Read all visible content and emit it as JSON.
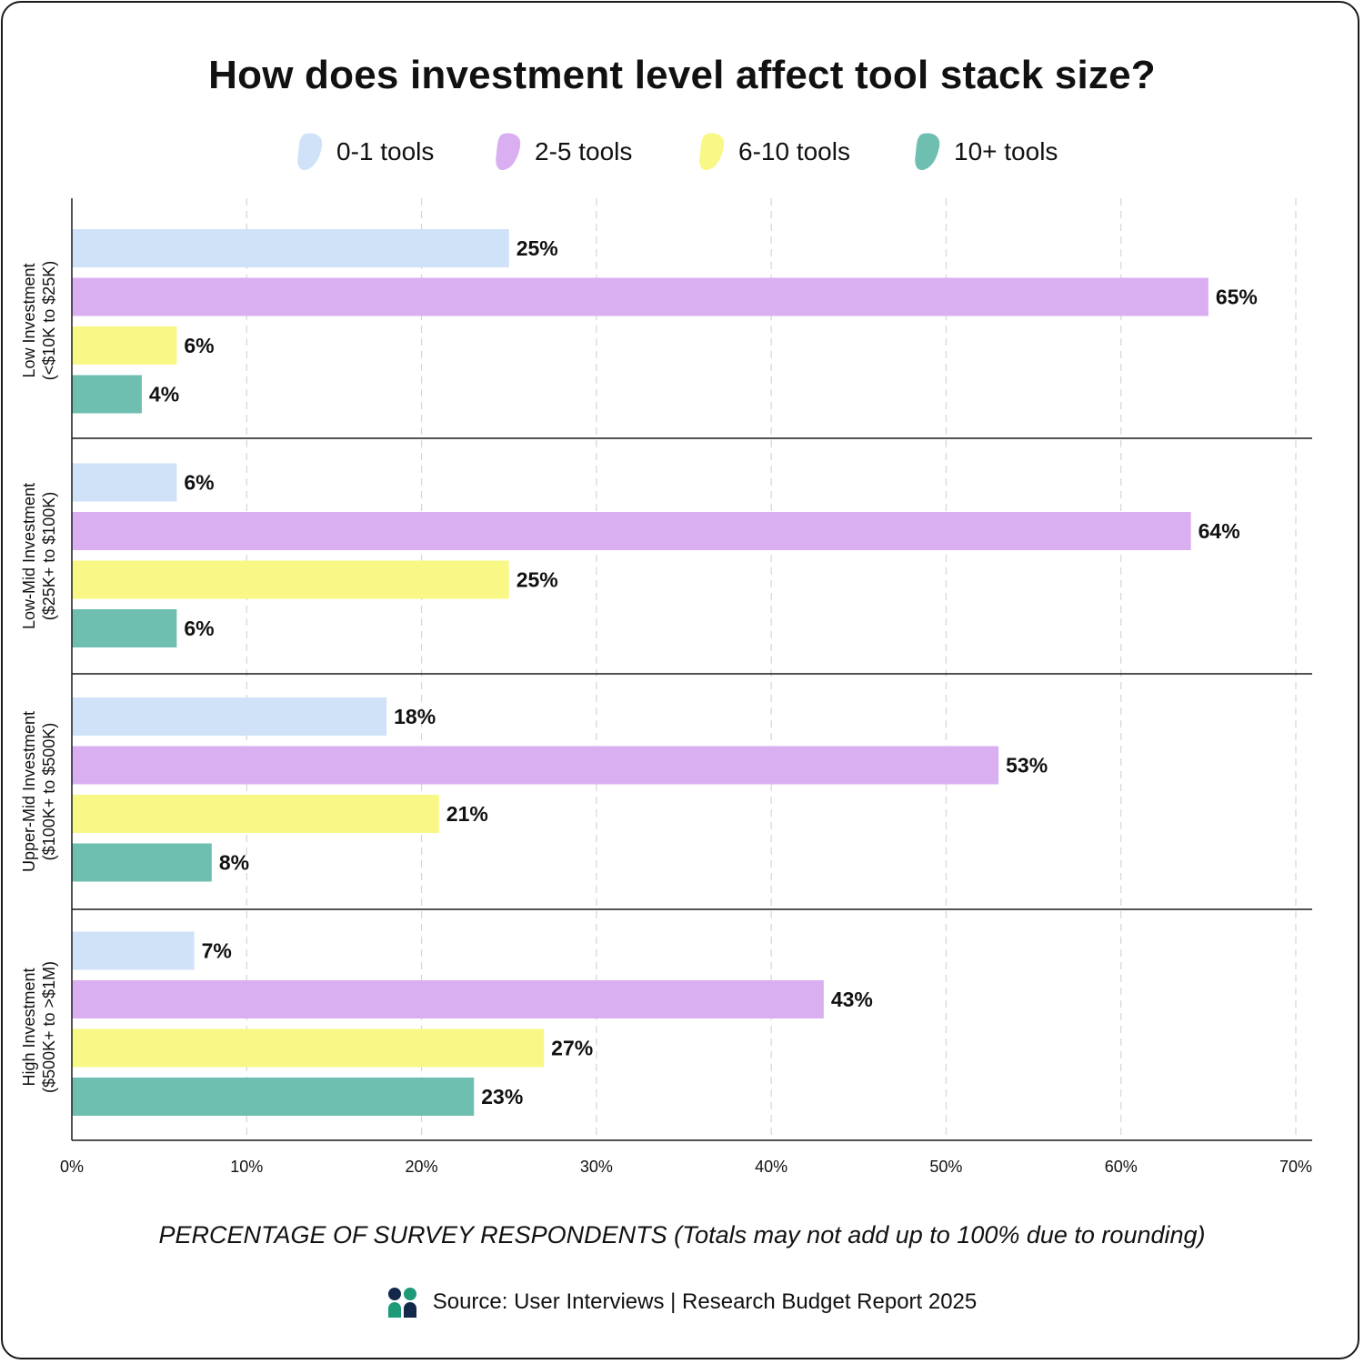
{
  "title": "How does investment level affect tool stack size?",
  "legend": [
    {
      "label": "0-1 tools",
      "color": "#cfe2f7"
    },
    {
      "label": "2-5 tools",
      "color": "#d9aff2"
    },
    {
      "label": "6-10 tools",
      "color": "#f9f886"
    },
    {
      "label": "10+ tools",
      "color": "#6fbfb1"
    }
  ],
  "x_axis_title": "PERCENTAGE OF SURVEY RESPONDENTS",
  "x_axis_note": "(Totals may not add up to 100% due to rounding)",
  "source": "Source: User Interviews | Research Budget Report 2025",
  "chart_data": {
    "type": "bar",
    "orientation": "horizontal",
    "title": "How does investment level affect tool stack size?",
    "xlabel": "PERCENTAGE OF SURVEY RESPONDENTS (Totals may not add up to 100% due to rounding)",
    "ylabel": "",
    "xlim": [
      0,
      70
    ],
    "x_ticks": [
      "0%",
      "10%",
      "20%",
      "30%",
      "40%",
      "50%",
      "60%",
      "70%"
    ],
    "grid": "vertical dashed",
    "legend_position": "top-center",
    "categories": [
      [
        "Low Investment",
        "(<$10K to $25K)"
      ],
      [
        "Low-Mid Investment",
        "($25K+ to $100K)"
      ],
      [
        "Upper-Mid Investment",
        "($100K+ to $500K)"
      ],
      [
        "High Investment",
        "($500K+ to >$1M)"
      ]
    ],
    "series": [
      {
        "name": "0-1 tools",
        "color": "#cfe2f7",
        "values": [
          25,
          6,
          18,
          7
        ]
      },
      {
        "name": "2-5 tools",
        "color": "#d9aff2",
        "values": [
          65,
          64,
          53,
          43
        ]
      },
      {
        "name": "6-10 tools",
        "color": "#f9f886",
        "values": [
          6,
          25,
          21,
          27
        ]
      },
      {
        "name": "10+ tools",
        "color": "#6fbfb1",
        "values": [
          4,
          6,
          8,
          23
        ]
      }
    ],
    "value_suffix": "%"
  }
}
